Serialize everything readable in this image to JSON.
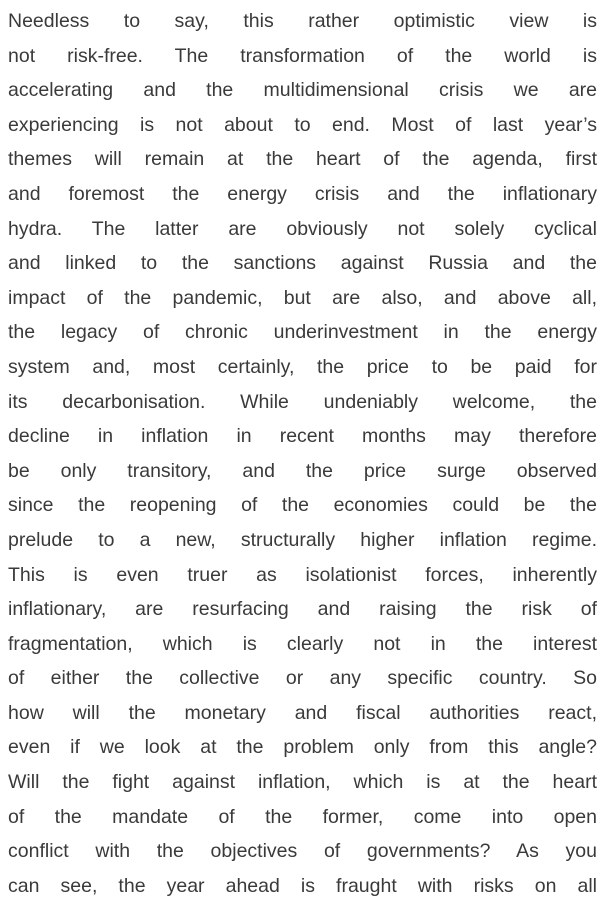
{
  "paragraph": {
    "lines": [
      "Needless to say, this rather optimistic view is",
      "not risk-free. The transformation of the world is",
      "accelerating and the multidimensional crisis we are",
      "experiencing is not about to end. Most of last year’s",
      "themes will remain at the heart of the agenda, first",
      "and foremost the energy crisis and the inflationary",
      "hydra. The latter are obviously not solely cyclical",
      "and linked to the sanctions against Russia and the",
      "impact of the pandemic, but are also, and above all,",
      "the legacy of chronic underinvestment in the energy",
      "system and, most certainly, the price to be paid for",
      "its decarbonisation. While undeniably welcome, the",
      "decline in inflation in recent months may therefore",
      "be only transitory, and the price surge observed",
      "since the reopening of the economies could be the",
      "prelude to a new, structurally higher inflation regime.",
      "This is even truer as isolationist forces, inherently",
      "inflationary, are resurfacing and raising the risk of",
      "fragmentation, which is clearly not in the interest",
      "of either the collective or any specific country. So",
      "how will the monetary and fiscal authorities react,",
      "even if we look at the problem only from this angle?",
      "Will the fight against inflation, which is at the heart",
      "of the mandate of the former, come into open",
      "conflict with the objectives of governments? As you",
      "can see, the year ahead is fraught with risks on all"
    ]
  }
}
